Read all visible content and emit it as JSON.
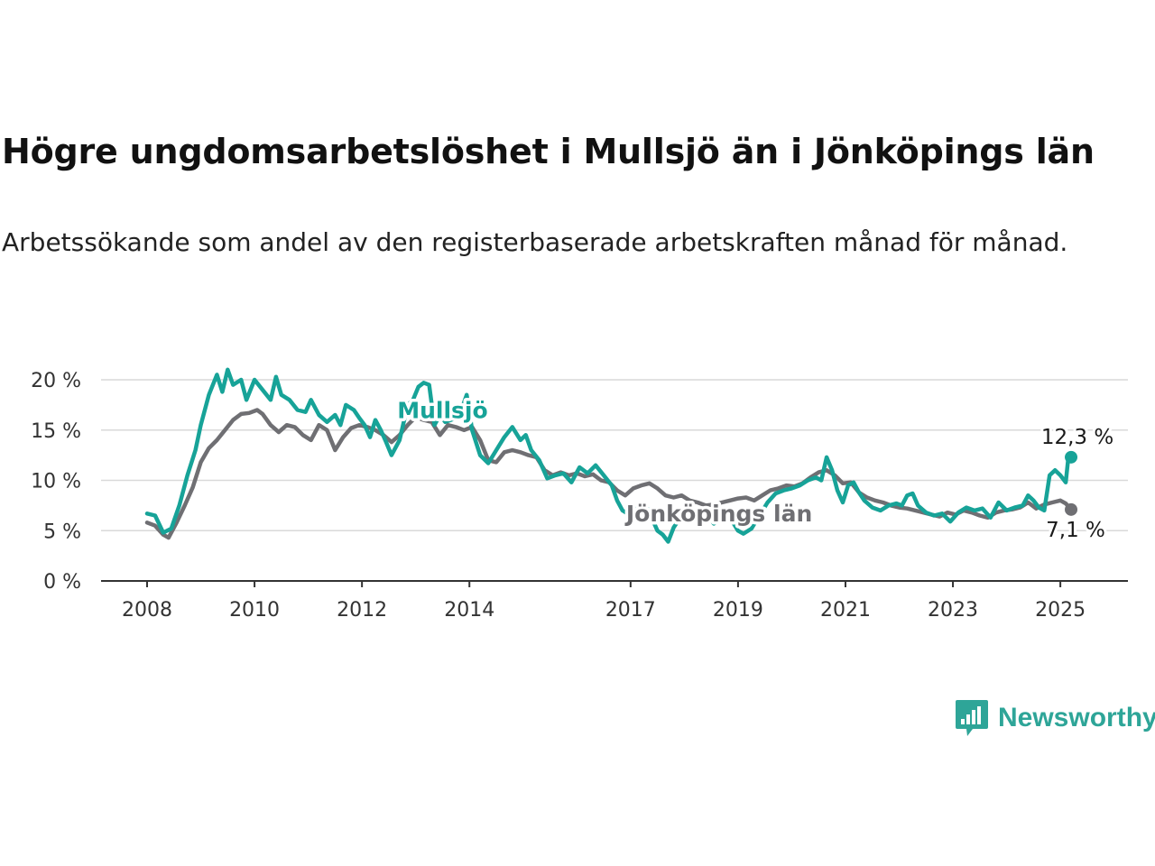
{
  "title": "Högre ungdomsarbetslöshet i Mullsjö än i Jönköpings län",
  "subtitle": "Arbetssökande som andel av den registerbaserade arbetskraften månad för månad.",
  "brand": {
    "name": "Newsworthy",
    "icon": "newsworthy-logo-icon",
    "color": "#2ea598"
  },
  "chart_data": {
    "type": "line",
    "title": "Högre ungdomsarbetslöshet i Mullsjö än i Jönköpings län",
    "xlabel": "",
    "ylabel": "",
    "x_range": [
      2008.0,
      2025.25
    ],
    "ylim": [
      0,
      20
    ],
    "y_ticks": [
      0,
      5,
      10,
      15,
      20
    ],
    "y_tick_labels": [
      "0 %",
      "5 %",
      "10 %",
      "15 %",
      "20 %"
    ],
    "x_ticks": [
      2008,
      2010,
      2012,
      2014,
      2017,
      2019,
      2021,
      2023,
      2025
    ],
    "x_tick_labels": [
      "2008",
      "2010",
      "2012",
      "2014",
      "2017",
      "2019",
      "2021",
      "2023",
      "2025"
    ],
    "grid": "horizontal",
    "legend": "direct labels on lines",
    "series": [
      {
        "name": "Mullsjö",
        "color": "#17a398",
        "end_label": "12,3 %",
        "points": [
          [
            2008.0,
            6.7
          ],
          [
            2008.15,
            6.5
          ],
          [
            2008.3,
            4.8
          ],
          [
            2008.45,
            5.2
          ],
          [
            2008.6,
            7.5
          ],
          [
            2008.75,
            10.5
          ],
          [
            2008.9,
            13.0
          ],
          [
            2009.0,
            15.5
          ],
          [
            2009.15,
            18.5
          ],
          [
            2009.3,
            20.5
          ],
          [
            2009.4,
            18.8
          ],
          [
            2009.5,
            21.0
          ],
          [
            2009.6,
            19.5
          ],
          [
            2009.75,
            20.0
          ],
          [
            2009.85,
            18.0
          ],
          [
            2010.0,
            20.0
          ],
          [
            2010.15,
            19.0
          ],
          [
            2010.3,
            18.0
          ],
          [
            2010.4,
            20.3
          ],
          [
            2010.5,
            18.5
          ],
          [
            2010.65,
            18.0
          ],
          [
            2010.8,
            17.0
          ],
          [
            2010.95,
            16.8
          ],
          [
            2011.05,
            18.0
          ],
          [
            2011.2,
            16.5
          ],
          [
            2011.35,
            15.8
          ],
          [
            2011.5,
            16.5
          ],
          [
            2011.6,
            15.5
          ],
          [
            2011.7,
            17.5
          ],
          [
            2011.85,
            17.0
          ],
          [
            2011.95,
            16.2
          ],
          [
            2012.05,
            15.5
          ],
          [
            2012.15,
            14.3
          ],
          [
            2012.25,
            16.0
          ],
          [
            2012.35,
            15.0
          ],
          [
            2012.45,
            13.8
          ],
          [
            2012.55,
            12.5
          ],
          [
            2012.7,
            14.0
          ],
          [
            2012.85,
            17.5
          ],
          [
            2012.95,
            18.0
          ],
          [
            2013.05,
            19.3
          ],
          [
            2013.15,
            19.7
          ],
          [
            2013.25,
            19.5
          ],
          [
            2013.35,
            15.5
          ],
          [
            2013.45,
            16.5
          ],
          [
            2013.55,
            15.8
          ],
          [
            2013.65,
            16.0
          ],
          [
            2013.75,
            16.2
          ],
          [
            2013.85,
            17.0
          ],
          [
            2013.95,
            18.5
          ],
          [
            2014.05,
            15.0
          ],
          [
            2014.2,
            12.5
          ],
          [
            2014.35,
            11.7
          ],
          [
            2014.5,
            13.0
          ],
          [
            2014.65,
            14.3
          ],
          [
            2014.8,
            15.3
          ],
          [
            2014.95,
            14.0
          ],
          [
            2015.05,
            14.5
          ],
          [
            2015.15,
            13.0
          ],
          [
            2015.3,
            12.0
          ],
          [
            2015.45,
            10.2
          ],
          [
            2015.6,
            10.5
          ],
          [
            2015.75,
            10.7
          ],
          [
            2015.9,
            9.8
          ],
          [
            2016.05,
            11.3
          ],
          [
            2016.2,
            10.7
          ],
          [
            2016.35,
            11.5
          ],
          [
            2016.5,
            10.5
          ],
          [
            2016.65,
            9.5
          ],
          [
            2016.75,
            8.0
          ],
          [
            2016.85,
            7.0
          ],
          [
            2017.0,
            6.5
          ],
          [
            2017.1,
            7.2
          ],
          [
            2017.2,
            6.6
          ],
          [
            2017.3,
            7.3
          ],
          [
            2017.4,
            6.2
          ],
          [
            2017.5,
            5.0
          ],
          [
            2017.6,
            4.6
          ],
          [
            2017.7,
            3.9
          ],
          [
            2017.8,
            5.3
          ],
          [
            2017.95,
            6.5
          ],
          [
            2018.1,
            7.0
          ],
          [
            2018.25,
            6.2
          ],
          [
            2018.4,
            6.8
          ],
          [
            2018.55,
            5.7
          ],
          [
            2018.7,
            6.2
          ],
          [
            2018.85,
            6.3
          ],
          [
            2019.0,
            5.0
          ],
          [
            2019.1,
            4.7
          ],
          [
            2019.25,
            5.2
          ],
          [
            2019.4,
            6.5
          ],
          [
            2019.55,
            7.8
          ],
          [
            2019.7,
            8.7
          ],
          [
            2019.85,
            9.0
          ],
          [
            2020.0,
            9.2
          ],
          [
            2020.15,
            9.5
          ],
          [
            2020.3,
            10.0
          ],
          [
            2020.45,
            10.3
          ],
          [
            2020.55,
            10.0
          ],
          [
            2020.65,
            12.3
          ],
          [
            2020.75,
            11.0
          ],
          [
            2020.85,
            9.0
          ],
          [
            2020.95,
            7.8
          ],
          [
            2021.05,
            9.5
          ],
          [
            2021.15,
            9.8
          ],
          [
            2021.25,
            8.8
          ],
          [
            2021.35,
            8.0
          ],
          [
            2021.5,
            7.3
          ],
          [
            2021.65,
            7.0
          ],
          [
            2021.8,
            7.5
          ],
          [
            2021.95,
            7.7
          ],
          [
            2022.05,
            7.5
          ],
          [
            2022.15,
            8.5
          ],
          [
            2022.25,
            8.7
          ],
          [
            2022.35,
            7.5
          ],
          [
            2022.5,
            6.8
          ],
          [
            2022.65,
            6.5
          ],
          [
            2022.8,
            6.7
          ],
          [
            2022.95,
            5.9
          ],
          [
            2023.1,
            6.8
          ],
          [
            2023.25,
            7.3
          ],
          [
            2023.4,
            7.0
          ],
          [
            2023.55,
            7.2
          ],
          [
            2023.7,
            6.3
          ],
          [
            2023.85,
            7.8
          ],
          [
            2024.0,
            7.0
          ],
          [
            2024.15,
            7.3
          ],
          [
            2024.3,
            7.5
          ],
          [
            2024.4,
            8.5
          ],
          [
            2024.5,
            8.0
          ],
          [
            2024.6,
            7.3
          ],
          [
            2024.7,
            7.0
          ],
          [
            2024.8,
            10.5
          ],
          [
            2024.9,
            11.0
          ],
          [
            2025.0,
            10.5
          ],
          [
            2025.1,
            9.8
          ],
          [
            2025.15,
            12.3
          ],
          [
            2025.2,
            12.3
          ]
        ]
      },
      {
        "name": "Jönköpings län",
        "color": "#6f6f73",
        "end_label": "7,1 %",
        "points": [
          [
            2008.0,
            5.8
          ],
          [
            2008.15,
            5.5
          ],
          [
            2008.3,
            4.6
          ],
          [
            2008.4,
            4.3
          ],
          [
            2008.55,
            5.8
          ],
          [
            2008.7,
            7.5
          ],
          [
            2008.85,
            9.3
          ],
          [
            2009.0,
            11.8
          ],
          [
            2009.15,
            13.2
          ],
          [
            2009.3,
            14.0
          ],
          [
            2009.45,
            15.0
          ],
          [
            2009.6,
            16.0
          ],
          [
            2009.75,
            16.6
          ],
          [
            2009.9,
            16.7
          ],
          [
            2010.05,
            17.0
          ],
          [
            2010.15,
            16.6
          ],
          [
            2010.3,
            15.5
          ],
          [
            2010.45,
            14.8
          ],
          [
            2010.6,
            15.5
          ],
          [
            2010.75,
            15.3
          ],
          [
            2010.9,
            14.5
          ],
          [
            2011.05,
            14.0
          ],
          [
            2011.2,
            15.5
          ],
          [
            2011.35,
            15.0
          ],
          [
            2011.5,
            13.0
          ],
          [
            2011.65,
            14.3
          ],
          [
            2011.8,
            15.2
          ],
          [
            2011.95,
            15.5
          ],
          [
            2012.1,
            15.3
          ],
          [
            2012.25,
            15.0
          ],
          [
            2012.4,
            14.5
          ],
          [
            2012.55,
            13.8
          ],
          [
            2012.7,
            14.5
          ],
          [
            2012.85,
            15.5
          ],
          [
            2013.0,
            16.3
          ],
          [
            2013.15,
            16.0
          ],
          [
            2013.3,
            15.8
          ],
          [
            2013.45,
            14.5
          ],
          [
            2013.6,
            15.5
          ],
          [
            2013.75,
            15.3
          ],
          [
            2013.9,
            15.0
          ],
          [
            2014.05,
            15.3
          ],
          [
            2014.2,
            14.0
          ],
          [
            2014.35,
            12.0
          ],
          [
            2014.5,
            11.8
          ],
          [
            2014.65,
            12.8
          ],
          [
            2014.8,
            13.0
          ],
          [
            2014.95,
            12.8
          ],
          [
            2015.1,
            12.5
          ],
          [
            2015.25,
            12.3
          ],
          [
            2015.4,
            11.0
          ],
          [
            2015.55,
            10.5
          ],
          [
            2015.7,
            10.8
          ],
          [
            2015.85,
            10.5
          ],
          [
            2016.0,
            10.7
          ],
          [
            2016.15,
            10.4
          ],
          [
            2016.3,
            10.6
          ],
          [
            2016.45,
            10.0
          ],
          [
            2016.6,
            9.8
          ],
          [
            2016.75,
            9.0
          ],
          [
            2016.9,
            8.5
          ],
          [
            2017.05,
            9.2
          ],
          [
            2017.2,
            9.5
          ],
          [
            2017.35,
            9.7
          ],
          [
            2017.5,
            9.2
          ],
          [
            2017.65,
            8.5
          ],
          [
            2017.8,
            8.3
          ],
          [
            2017.95,
            8.5
          ],
          [
            2018.1,
            8.0
          ],
          [
            2018.25,
            7.8
          ],
          [
            2018.4,
            7.5
          ],
          [
            2018.55,
            7.6
          ],
          [
            2018.7,
            7.8
          ],
          [
            2018.85,
            8.0
          ],
          [
            2019.0,
            8.2
          ],
          [
            2019.15,
            8.3
          ],
          [
            2019.3,
            8.0
          ],
          [
            2019.45,
            8.5
          ],
          [
            2019.6,
            9.0
          ],
          [
            2019.75,
            9.2
          ],
          [
            2019.9,
            9.5
          ],
          [
            2020.05,
            9.4
          ],
          [
            2020.2,
            9.7
          ],
          [
            2020.35,
            10.3
          ],
          [
            2020.5,
            10.8
          ],
          [
            2020.65,
            11.0
          ],
          [
            2020.8,
            10.5
          ],
          [
            2020.95,
            9.7
          ],
          [
            2021.1,
            9.8
          ],
          [
            2021.25,
            8.8
          ],
          [
            2021.4,
            8.3
          ],
          [
            2021.55,
            8.0
          ],
          [
            2021.7,
            7.8
          ],
          [
            2021.85,
            7.5
          ],
          [
            2022.0,
            7.3
          ],
          [
            2022.15,
            7.2
          ],
          [
            2022.3,
            7.0
          ],
          [
            2022.45,
            6.8
          ],
          [
            2022.6,
            6.6
          ],
          [
            2022.75,
            6.4
          ],
          [
            2022.9,
            6.8
          ],
          [
            2023.05,
            6.6
          ],
          [
            2023.2,
            7.0
          ],
          [
            2023.35,
            6.8
          ],
          [
            2023.5,
            6.5
          ],
          [
            2023.65,
            6.3
          ],
          [
            2023.8,
            6.8
          ],
          [
            2023.95,
            7.0
          ],
          [
            2024.1,
            7.1
          ],
          [
            2024.25,
            7.3
          ],
          [
            2024.4,
            7.8
          ],
          [
            2024.55,
            7.2
          ],
          [
            2024.7,
            7.6
          ],
          [
            2024.85,
            7.8
          ],
          [
            2025.0,
            8.0
          ],
          [
            2025.1,
            7.7
          ],
          [
            2025.2,
            7.1
          ]
        ]
      }
    ]
  }
}
